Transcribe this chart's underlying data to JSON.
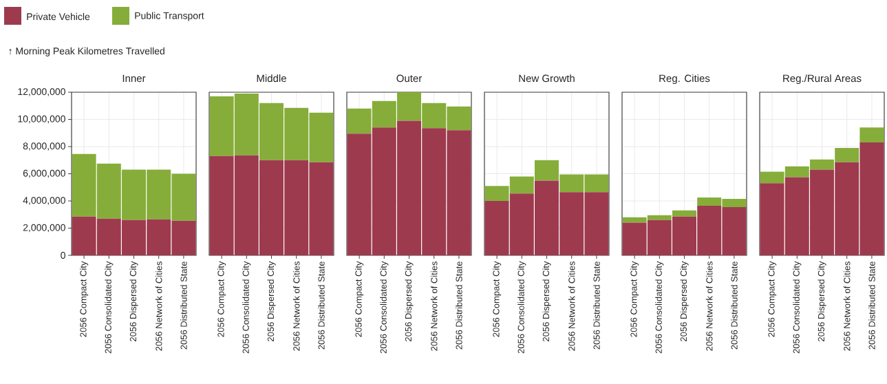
{
  "chart_data": [
    {
      "type": "bar",
      "stacked": true,
      "title": "Inner",
      "ylabel": "↑ Morning Peak Kilometres Travelled",
      "legend": "top left",
      "grid": true,
      "categories": [
        "2056 Compact City",
        "2056 Consolidated City",
        "2056 Dispersed City",
        "2056 Network of Cities",
        "2056 Distributed State"
      ],
      "series": [
        {
          "name": "Private Vehicle",
          "color": "#9e3a4e",
          "values": [
            2850000,
            2700000,
            2600000,
            2650000,
            2550000
          ]
        },
        {
          "name": "Public Transport",
          "color": "#86ad3a",
          "values": [
            4600000,
            4050000,
            3700000,
            3650000,
            3450000
          ]
        }
      ],
      "ylim": [
        0,
        12000000
      ],
      "yticks": [
        {
          "value": 0,
          "label": "0"
        },
        {
          "value": 2000000,
          "label": "2,000,000"
        },
        {
          "value": 4000000,
          "label": "4,000,000"
        },
        {
          "value": 6000000,
          "label": "6,000,000"
        },
        {
          "value": 8000000,
          "label": "8,000,000"
        },
        {
          "value": 10000000,
          "label": "10,000,000"
        },
        {
          "value": 12000000,
          "label": "12,000,000"
        }
      ]
    },
    {
      "type": "bar",
      "stacked": true,
      "title": "Middle",
      "grid": true,
      "tick_labels": "x",
      "categories": [
        "2056 Compact City",
        "2056 Consolidated City",
        "2056 Dispersed City",
        "2056 Network of Cities",
        "2056 Distributed State"
      ],
      "series": [
        {
          "color": "#9e3a4e",
          "values": [
            7300000,
            7350000,
            7000000,
            7000000,
            6850000
          ]
        },
        {
          "color": "#86ad3a",
          "values": [
            4400000,
            4550000,
            4200000,
            3850000,
            3650000
          ]
        }
      ],
      "ylim": [
        0,
        12000000
      ],
      "yticks": [
        0,
        2000000,
        4000000,
        6000000,
        8000000,
        10000000,
        12000000
      ]
    },
    {
      "type": "bar",
      "stacked": true,
      "title": "Outer",
      "grid": true,
      "tick_labels": "x",
      "categories": [
        "2056 Compact City",
        "2056 Consolidated City",
        "2056 Dispersed City",
        "2056 Network of Cities",
        "2056 Distributed State"
      ],
      "series": [
        {
          "color": "#9e3a4e",
          "values": [
            8950000,
            9400000,
            9900000,
            9350000,
            9200000
          ]
        },
        {
          "color": "#86ad3a",
          "values": [
            1850000,
            1950000,
            2100000,
            1850000,
            1750000
          ]
        }
      ],
      "ylim": [
        0,
        12000000
      ],
      "yticks": [
        0,
        2000000,
        4000000,
        6000000,
        8000000,
        10000000,
        12000000
      ]
    },
    {
      "type": "bar",
      "stacked": true,
      "title": "New Growth",
      "grid": true,
      "tick_labels": "x",
      "categories": [
        "2056 Compact City",
        "2056 Consolidated City",
        "2056 Dispersed City",
        "2056 Network of Cities",
        "2056 Distributed State"
      ],
      "series": [
        {
          "color": "#9e3a4e",
          "values": [
            4000000,
            4550000,
            5500000,
            4650000,
            4650000
          ]
        },
        {
          "color": "#86ad3a",
          "values": [
            1100000,
            1250000,
            1500000,
            1300000,
            1300000
          ]
        }
      ],
      "ylim": [
        0,
        12000000
      ],
      "yticks": [
        0,
        2000000,
        4000000,
        6000000,
        8000000,
        10000000,
        12000000
      ]
    },
    {
      "type": "bar",
      "stacked": true,
      "title": "Reg. Cities",
      "grid": true,
      "tick_labels": "x",
      "categories": [
        "2056 Compact City",
        "2056 Consolidated City",
        "2056 Dispersed City",
        "2056 Network of Cities",
        "2056 Distributed State"
      ],
      "series": [
        {
          "color": "#9e3a4e",
          "values": [
            2400000,
            2600000,
            2850000,
            3650000,
            3550000
          ]
        },
        {
          "color": "#86ad3a",
          "values": [
            400000,
            350000,
            450000,
            600000,
            600000
          ]
        }
      ],
      "ylim": [
        0,
        12000000
      ],
      "yticks": [
        0,
        2000000,
        4000000,
        6000000,
        8000000,
        10000000,
        12000000
      ]
    },
    {
      "type": "bar",
      "stacked": true,
      "title": "Reg./Rural Areas",
      "grid": true,
      "tick_labels": "x",
      "categories": [
        "2056 Compact City",
        "2056 Consolidated City",
        "2056 Dispersed City",
        "2056 Network of Cities",
        "2056 Distributed State"
      ],
      "series": [
        {
          "color": "#9e3a4e",
          "values": [
            5300000,
            5750000,
            6300000,
            6850000,
            8300000
          ]
        },
        {
          "color": "#86ad3a",
          "values": [
            850000,
            800000,
            750000,
            1050000,
            1100000
          ]
        }
      ],
      "ylim": [
        0,
        12000000
      ],
      "yticks": [
        0,
        2000000,
        4000000,
        6000000,
        8000000,
        10000000,
        12000000
      ]
    }
  ]
}
